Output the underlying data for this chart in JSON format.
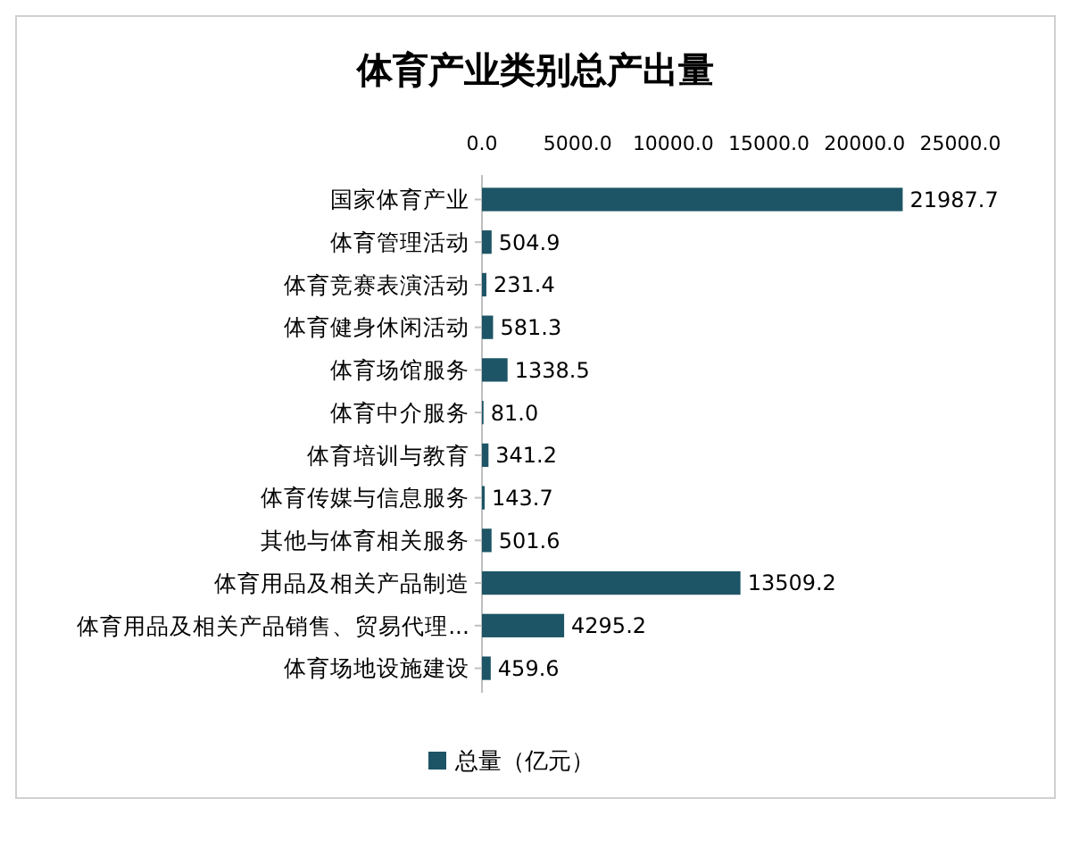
{
  "chart_data": {
    "type": "bar",
    "orientation": "horizontal",
    "title": "体育产业类别总产出量",
    "categories": [
      "国家体育产业",
      "体育管理活动",
      "体育竞赛表演活动",
      "体育健身休闲活动",
      "体育场馆服务",
      "体育中介服务",
      "体育培训与教育",
      "体育传媒与信息服务",
      "其他与体育相关服务",
      "体育用品及相关产品制造",
      "体育用品及相关产品销售、贸易代理...",
      "体育场地设施建设"
    ],
    "series": [
      {
        "name": "总量（亿元）",
        "color": "#1d5566",
        "values": [
          21987.7,
          504.9,
          231.4,
          581.3,
          1338.5,
          81.0,
          341.2,
          143.7,
          501.6,
          13509.2,
          4295.2,
          459.6
        ],
        "value_labels": [
          "21987.7",
          "504.9",
          "231.4",
          "581.3",
          "1338.5",
          "81.0",
          "341.2",
          "143.7",
          "501.6",
          "13509.2",
          "4295.2",
          "459.6"
        ]
      }
    ],
    "xlim": [
      0,
      25000
    ],
    "xticks": [
      {
        "value": 0,
        "label": "0.0"
      },
      {
        "value": 5000,
        "label": "5000.0"
      },
      {
        "value": 10000,
        "label": "10000.0"
      },
      {
        "value": 15000,
        "label": "15000.0"
      },
      {
        "value": 20000,
        "label": "20000.0"
      },
      {
        "value": 25000,
        "label": "25000.0"
      }
    ],
    "legend": "bottom"
  }
}
